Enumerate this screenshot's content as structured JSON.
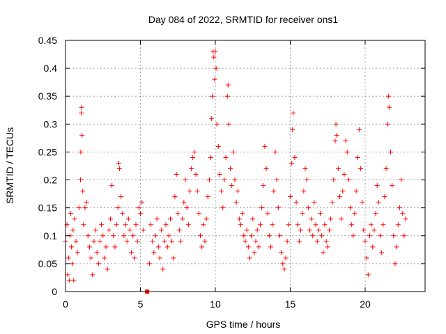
{
  "chart_data": {
    "type": "scatter",
    "title": "Day 084 of 2022, SRMTID for receiver ons1",
    "xlabel": "GPS time / hours",
    "ylabel": "SRMTID / TECUs",
    "xlim": [
      0,
      24
    ],
    "ylim": [
      0,
      0.45
    ],
    "xticks": [
      0,
      5,
      10,
      15,
      20
    ],
    "xtick_labels": [
      "0",
      "5",
      "10",
      "15",
      "20"
    ],
    "yticks": [
      0,
      0.05,
      0.1,
      0.15,
      0.2,
      0.25,
      0.3,
      0.35,
      0.4,
      0.45
    ],
    "ytick_labels": [
      "0",
      "0.05",
      "0.1",
      "0.15",
      "0.2",
      "0.25",
      "0.3",
      "0.35",
      "0.4",
      "0.45"
    ],
    "grid": true,
    "marker": "+",
    "series_color": "#ff0000",
    "series": [
      {
        "name": "SRMTID",
        "points": [
          [
            0.0,
            0.09
          ],
          [
            0.1,
            0.12
          ],
          [
            0.15,
            0.03
          ],
          [
            0.2,
            0.06
          ],
          [
            0.25,
            0.02
          ],
          [
            0.3,
            0.1
          ],
          [
            0.35,
            0.14
          ],
          [
            0.4,
            0.08
          ],
          [
            0.45,
            0.05
          ],
          [
            0.5,
            0.11
          ],
          [
            0.55,
            0.02
          ],
          [
            0.6,
            0.13
          ],
          [
            0.7,
            0.09
          ],
          [
            0.8,
            0.07
          ],
          [
            0.9,
            0.15
          ],
          [
            1.0,
            0.2
          ],
          [
            1.02,
            0.25
          ],
          [
            1.05,
            0.32
          ],
          [
            1.08,
            0.33
          ],
          [
            1.1,
            0.28
          ],
          [
            1.15,
            0.18
          ],
          [
            1.2,
            0.12
          ],
          [
            1.3,
            0.15
          ],
          [
            1.4,
            0.16
          ],
          [
            1.5,
            0.1
          ],
          [
            1.6,
            0.08
          ],
          [
            1.7,
            0.06
          ],
          [
            1.8,
            0.03
          ],
          [
            1.9,
            0.09
          ],
          [
            2.0,
            0.11
          ],
          [
            2.1,
            0.07
          ],
          [
            2.2,
            0.05
          ],
          [
            2.3,
            0.09
          ],
          [
            2.4,
            0.12
          ],
          [
            2.5,
            0.1
          ],
          [
            2.6,
            0.06
          ],
          [
            2.7,
            0.08
          ],
          [
            2.8,
            0.04
          ],
          [
            2.9,
            0.11
          ],
          [
            3.0,
            0.13
          ],
          [
            3.1,
            0.19
          ],
          [
            3.2,
            0.1
          ],
          [
            3.3,
            0.08
          ],
          [
            3.4,
            0.12
          ],
          [
            3.5,
            0.15
          ],
          [
            3.55,
            0.23
          ],
          [
            3.6,
            0.22
          ],
          [
            3.7,
            0.17
          ],
          [
            3.8,
            0.14
          ],
          [
            3.9,
            0.1
          ],
          [
            4.0,
            0.12
          ],
          [
            4.1,
            0.09
          ],
          [
            4.2,
            0.13
          ],
          [
            4.3,
            0.11
          ],
          [
            4.4,
            0.07
          ],
          [
            4.5,
            0.1
          ],
          [
            4.6,
            0.06
          ],
          [
            4.7,
            0.12
          ],
          [
            4.8,
            0.09
          ],
          [
            4.9,
            0.15
          ],
          [
            5.0,
            0.14
          ],
          [
            5.1,
            0.16
          ],
          [
            5.2,
            0.11
          ],
          [
            5.6,
            0.05
          ],
          [
            5.7,
            0.12
          ],
          [
            5.8,
            0.09
          ],
          [
            5.9,
            0.07
          ],
          [
            6.0,
            0.1
          ],
          [
            6.1,
            0.13
          ],
          [
            6.2,
            0.08
          ],
          [
            6.3,
            0.06
          ],
          [
            6.4,
            0.11
          ],
          [
            6.5,
            0.04
          ],
          [
            6.6,
            0.09
          ],
          [
            6.7,
            0.12
          ],
          [
            6.8,
            0.08
          ],
          [
            6.9,
            0.1
          ],
          [
            7.0,
            0.13
          ],
          [
            7.1,
            0.09
          ],
          [
            7.2,
            0.06
          ],
          [
            7.3,
            0.17
          ],
          [
            7.4,
            0.21
          ],
          [
            7.5,
            0.14
          ],
          [
            7.6,
            0.11
          ],
          [
            7.7,
            0.09
          ],
          [
            7.8,
            0.13
          ],
          [
            7.9,
            0.16
          ],
          [
            8.0,
            0.2
          ],
          [
            8.1,
            0.15
          ],
          [
            8.2,
            0.12
          ],
          [
            8.3,
            0.18
          ],
          [
            8.4,
            0.22
          ],
          [
            8.5,
            0.24
          ],
          [
            8.6,
            0.25
          ],
          [
            8.7,
            0.21
          ],
          [
            8.8,
            0.18
          ],
          [
            8.9,
            0.14
          ],
          [
            9.0,
            0.1
          ],
          [
            9.1,
            0.08
          ],
          [
            9.2,
            0.12
          ],
          [
            9.3,
            0.09
          ],
          [
            9.4,
            0.13
          ],
          [
            9.5,
            0.17
          ],
          [
            9.6,
            0.2
          ],
          [
            9.7,
            0.24
          ],
          [
            9.75,
            0.31
          ],
          [
            9.8,
            0.35
          ],
          [
            9.85,
            0.43
          ],
          [
            9.9,
            0.42
          ],
          [
            9.95,
            0.38
          ],
          [
            10.0,
            0.43
          ],
          [
            10.05,
            0.4
          ],
          [
            10.1,
            0.3
          ],
          [
            10.2,
            0.26
          ],
          [
            10.3,
            0.21
          ],
          [
            10.4,
            0.18
          ],
          [
            10.5,
            0.15
          ],
          [
            10.6,
            0.2
          ],
          [
            10.7,
            0.24
          ],
          [
            10.8,
            0.35
          ],
          [
            10.85,
            0.37
          ],
          [
            10.9,
            0.3
          ],
          [
            11.0,
            0.22
          ],
          [
            11.1,
            0.19
          ],
          [
            11.2,
            0.25
          ],
          [
            11.3,
            0.2
          ],
          [
            11.4,
            0.16
          ],
          [
            11.5,
            0.18
          ],
          [
            11.6,
            0.13
          ],
          [
            11.7,
            0.12
          ],
          [
            11.8,
            0.14
          ],
          [
            11.9,
            0.1
          ],
          [
            12.0,
            0.09
          ],
          [
            12.1,
            0.11
          ],
          [
            12.2,
            0.08
          ],
          [
            12.3,
            0.06
          ],
          [
            12.4,
            0.1
          ],
          [
            12.5,
            0.13
          ],
          [
            12.6,
            0.07
          ],
          [
            12.7,
            0.09
          ],
          [
            12.8,
            0.11
          ],
          [
            12.9,
            0.08
          ],
          [
            13.0,
            0.12
          ],
          [
            13.1,
            0.15
          ],
          [
            13.2,
            0.19
          ],
          [
            13.3,
            0.26
          ],
          [
            13.4,
            0.22
          ],
          [
            13.5,
            0.14
          ],
          [
            13.6,
            0.1
          ],
          [
            13.7,
            0.08
          ],
          [
            13.8,
            0.12
          ],
          [
            13.9,
            0.18
          ],
          [
            14.0,
            0.25
          ],
          [
            14.1,
            0.2
          ],
          [
            14.2,
            0.15
          ],
          [
            14.3,
            0.1
          ],
          [
            14.4,
            0.07
          ],
          [
            14.5,
            0.05
          ],
          [
            14.6,
            0.04
          ],
          [
            14.7,
            0.06
          ],
          [
            14.8,
            0.09
          ],
          [
            14.9,
            0.12
          ],
          [
            15.0,
            0.17
          ],
          [
            15.1,
            0.23
          ],
          [
            15.15,
            0.29
          ],
          [
            15.2,
            0.32
          ],
          [
            15.3,
            0.24
          ],
          [
            15.4,
            0.16
          ],
          [
            15.5,
            0.12
          ],
          [
            15.6,
            0.09
          ],
          [
            15.7,
            0.11
          ],
          [
            15.8,
            0.14
          ],
          [
            15.9,
            0.18
          ],
          [
            16.0,
            0.22
          ],
          [
            16.1,
            0.2
          ],
          [
            16.2,
            0.15
          ],
          [
            16.3,
            0.11
          ],
          [
            16.4,
            0.13
          ],
          [
            16.5,
            0.1
          ],
          [
            16.6,
            0.16
          ],
          [
            16.7,
            0.12
          ],
          [
            16.8,
            0.09
          ],
          [
            16.9,
            0.11
          ],
          [
            17.0,
            0.14
          ],
          [
            17.1,
            0.1
          ],
          [
            17.2,
            0.07
          ],
          [
            17.3,
            0.12
          ],
          [
            17.4,
            0.09
          ],
          [
            17.5,
            0.08
          ],
          [
            17.6,
            0.11
          ],
          [
            17.7,
            0.13
          ],
          [
            17.8,
            0.16
          ],
          [
            17.9,
            0.2
          ],
          [
            18.0,
            0.27
          ],
          [
            18.05,
            0.3
          ],
          [
            18.1,
            0.28
          ],
          [
            18.2,
            0.22
          ],
          [
            18.3,
            0.17
          ],
          [
            18.4,
            0.13
          ],
          [
            18.5,
            0.18
          ],
          [
            18.6,
            0.21
          ],
          [
            18.7,
            0.27
          ],
          [
            18.8,
            0.25
          ],
          [
            18.9,
            0.2
          ],
          [
            19.0,
            0.15
          ],
          [
            19.1,
            0.12
          ],
          [
            19.2,
            0.1
          ],
          [
            19.3,
            0.14
          ],
          [
            19.4,
            0.18
          ],
          [
            19.5,
            0.24
          ],
          [
            19.6,
            0.29
          ],
          [
            19.7,
            0.22
          ],
          [
            19.8,
            0.16
          ],
          [
            19.9,
            0.11
          ],
          [
            20.0,
            0.09
          ],
          [
            20.1,
            0.06
          ],
          [
            20.2,
            0.03
          ],
          [
            20.3,
            0.1
          ],
          [
            20.4,
            0.12
          ],
          [
            20.5,
            0.08
          ],
          [
            20.6,
            0.11
          ],
          [
            20.7,
            0.14
          ],
          [
            20.8,
            0.19
          ],
          [
            20.9,
            0.16
          ],
          [
            21.0,
            0.1
          ],
          [
            21.1,
            0.07
          ],
          [
            21.2,
            0.12
          ],
          [
            21.3,
            0.17
          ],
          [
            21.4,
            0.22
          ],
          [
            21.5,
            0.3
          ],
          [
            21.55,
            0.35
          ],
          [
            21.6,
            0.33
          ],
          [
            21.7,
            0.25
          ],
          [
            21.8,
            0.19
          ],
          [
            21.9,
            0.1
          ],
          [
            22.0,
            0.05
          ],
          [
            22.1,
            0.08
          ],
          [
            22.2,
            0.12
          ],
          [
            22.3,
            0.15
          ],
          [
            22.4,
            0.2
          ],
          [
            22.5,
            0.14
          ],
          [
            22.6,
            0.1
          ],
          [
            22.7,
            0.13
          ]
        ]
      }
    ],
    "special_markers": [
      [
        5.45,
        0.0
      ]
    ]
  }
}
